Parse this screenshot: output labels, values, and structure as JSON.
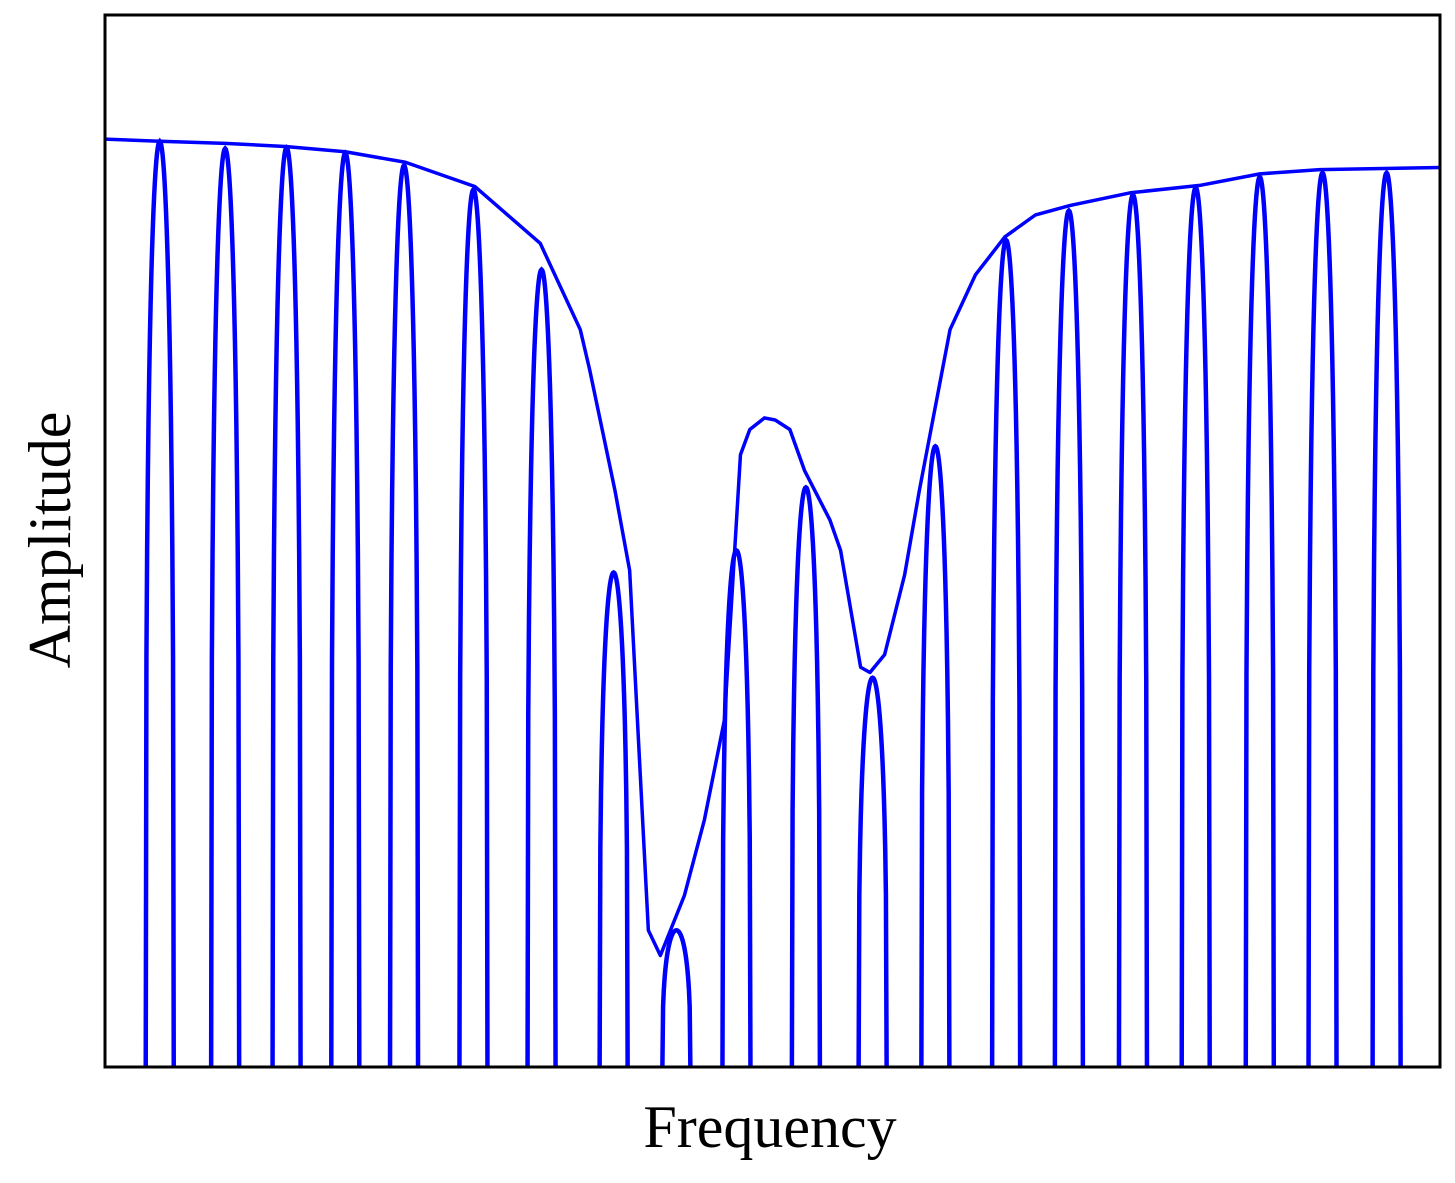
{
  "chart_data": {
    "type": "line",
    "xlabel": "Frequency",
    "ylabel": "Amplitude",
    "xlim": [
      0,
      100
    ],
    "ylim": [
      0,
      100
    ],
    "series": [
      {
        "type": "line",
        "color": "#0000ff",
        "x": [
          0,
          4.1,
          9.0,
          13.5,
          18.0,
          22.5,
          27.7,
          32.6,
          35.6,
          36.3,
          38.2,
          39.3,
          40.7,
          41.6,
          43.4,
          44.9,
          46.4,
          47.6,
          48.3,
          49.4,
          50.2,
          51.3,
          52.4,
          54.3,
          55.1,
          56.6,
          57.3,
          58.4,
          59.9,
          61.0,
          63.3,
          65.2,
          67.4,
          69.7,
          72.3,
          76.8,
          82.0,
          86.5,
          91.0,
          100
        ],
        "values": [
          88.2,
          88.0,
          87.8,
          87.5,
          87.0,
          86.0,
          83.7,
          78.3,
          70.1,
          66.3,
          54.8,
          47.2,
          13.0,
          10.6,
          16.3,
          23.5,
          33.0,
          58.2,
          60.6,
          61.7,
          61.5,
          60.6,
          56.7,
          52.0,
          49.1,
          38.0,
          37.5,
          39.2,
          46.8,
          54.8,
          70.1,
          75.3,
          78.9,
          81.0,
          81.9,
          83.1,
          83.8,
          84.9,
          85.3,
          85.5
        ]
      },
      {
        "type": "spike",
        "color": "#0000ff",
        "x": [
          4.1,
          9.0,
          13.6,
          18.0,
          22.4,
          27.6,
          32.7,
          38.1,
          42.8,
          47.3,
          52.5,
          57.5,
          62.2,
          67.5,
          72.2,
          77.0,
          81.7,
          86.5,
          91.2,
          96.0
        ],
        "values": [
          88.0,
          87.3,
          87.4,
          86.9,
          85.7,
          83.4,
          75.8,
          47.0,
          13.0,
          49.1,
          55.1,
          37.0,
          59.0,
          78.6,
          81.4,
          82.9,
          83.6,
          84.6,
          85.0,
          85.0
        ]
      }
    ]
  }
}
